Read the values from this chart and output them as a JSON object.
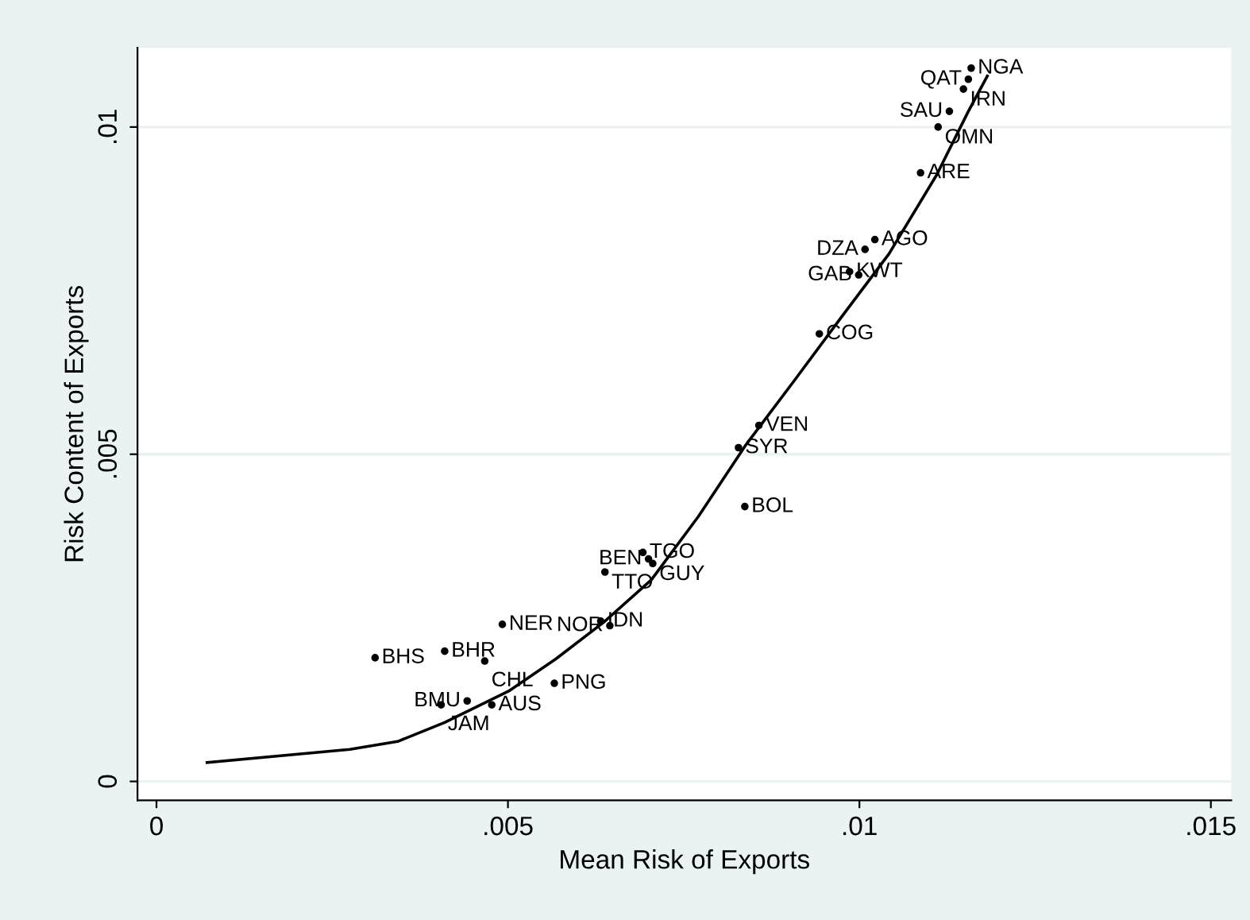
{
  "chart_data": {
    "type": "scatter",
    "xlabel": "Mean Risk of Exports",
    "ylabel": "Risk Content of Exports",
    "xlim": [
      -0.00027,
      0.01529
    ],
    "ylim": [
      -0.00029,
      0.01121
    ],
    "xticks": [
      {
        "value": 0,
        "label": "0"
      },
      {
        "value": 0.005,
        "label": ".005"
      },
      {
        "value": 0.01,
        "label": ".01"
      },
      {
        "value": 0.015,
        "label": ".015"
      }
    ],
    "yticks": [
      {
        "value": 0,
        "label": "0"
      },
      {
        "value": 0.005,
        "label": ".005"
      },
      {
        "value": 0.01,
        "label": ".01"
      }
    ],
    "grid": "y",
    "series": [
      {
        "color": "#000000",
        "marker": "circle",
        "x": [
          0.01159,
          0.01155,
          0.01148,
          0.01128,
          0.01112,
          0.01087,
          0.01022,
          0.01008,
          0.00986,
          0.00999,
          0.00943,
          0.00857,
          0.00828,
          0.00837,
          0.00692,
          0.007,
          0.00706,
          0.00638,
          0.00632,
          0.00645,
          0.00492,
          0.00311,
          0.0041,
          0.00467,
          0.00566,
          0.00442,
          0.00405,
          0.00477
        ],
        "values": [
          0.0109,
          0.01073,
          0.01058,
          0.01024,
          0.01,
          0.0093,
          0.00828,
          0.00813,
          0.00779,
          0.00774,
          0.00684,
          0.00544,
          0.0051,
          0.0042,
          0.0035,
          0.0034,
          0.00333,
          0.0032,
          0.00245,
          0.00238,
          0.0024,
          0.00189,
          0.00199,
          0.00184,
          0.0015,
          0.00123,
          0.00117,
          0.00117
        ],
        "value_labels": [
          "NGA",
          "QAT",
          "IRN",
          "SAU",
          "OMN",
          "ARE",
          "AGO",
          "DZA",
          "KWT",
          "GAB",
          "COG",
          "VEN",
          "SYR",
          "BOL",
          "TGO",
          "BEN",
          "GUY",
          "TTO",
          "IDN",
          "NOR",
          "NER",
          "BHS",
          "BHR",
          "CHL",
          "PNG",
          "BMU",
          "JAM",
          "AUS"
        ]
      },
      {
        "type": "line",
        "color": "#000000",
        "line_style": "solid",
        "marker": "none",
        "x": [
          0.00072,
          0.00275,
          0.00343,
          0.0041,
          0.00501,
          0.00568,
          0.00636,
          0.00704,
          0.00771,
          0.00839,
          0.00907,
          0.00974,
          0.01042,
          0.0111,
          0.01155,
          0.01182
        ],
        "values": [
          0.00029,
          0.00049,
          0.00061,
          0.0009,
          0.00138,
          0.00187,
          0.00243,
          0.00308,
          0.00405,
          0.00515,
          0.00612,
          0.00709,
          0.00806,
          0.00927,
          0.01024,
          0.01078
        ]
      }
    ]
  }
}
